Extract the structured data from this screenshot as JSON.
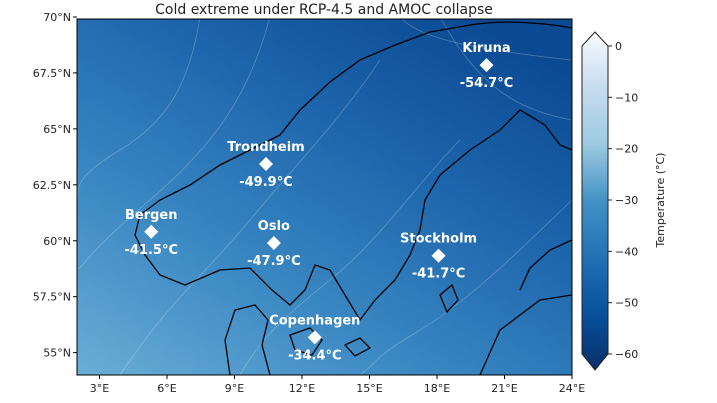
{
  "title": "Cold extreme under RCP-4.5 and AMOC collapse",
  "map": {
    "extent": {
      "lon": [
        2,
        24
      ],
      "lat": [
        54,
        70
      ]
    },
    "lat_ticks": [
      {
        "v": 70,
        "label": "70°N"
      },
      {
        "v": 67.5,
        "label": "67.5°N"
      },
      {
        "v": 65,
        "label": "65°N"
      },
      {
        "v": 62.5,
        "label": "62.5°N"
      },
      {
        "v": 60,
        "label": "60°N"
      },
      {
        "v": 57.5,
        "label": "57.5°N"
      },
      {
        "v": 55,
        "label": "55°N"
      }
    ],
    "lon_ticks": [
      {
        "v": 3,
        "label": "3°E"
      },
      {
        "v": 6,
        "label": "6°E"
      },
      {
        "v": 9,
        "label": "9°E"
      },
      {
        "v": 12,
        "label": "12°E"
      },
      {
        "v": 15,
        "label": "15°E"
      },
      {
        "v": 18,
        "label": "18°E"
      },
      {
        "v": 21,
        "label": "21°E"
      },
      {
        "v": 24,
        "label": "24°E"
      }
    ],
    "cities": [
      {
        "name": "Kiruna",
        "lon": 20.2,
        "lat": 67.85,
        "value": "-54.7°C"
      },
      {
        "name": "Trondheim",
        "lon": 10.4,
        "lat": 63.43,
        "value": "-49.9°C"
      },
      {
        "name": "Bergen",
        "lon": 5.3,
        "lat": 60.4,
        "value": "-41.5°C"
      },
      {
        "name": "Oslo",
        "lon": 10.75,
        "lat": 59.9,
        "value": "-47.9°C"
      },
      {
        "name": "Stockholm",
        "lon": 18.07,
        "lat": 59.33,
        "value": "-41.7°C"
      },
      {
        "name": "Copenhagen",
        "lon": 12.57,
        "lat": 55.68,
        "value": "-34.4°C"
      }
    ]
  },
  "colorbar": {
    "label": "Temperature (°C)",
    "range": [
      -60,
      0
    ],
    "colormap": "Blues_r",
    "extend": "both",
    "ticks": [
      "0",
      "−10",
      "−20",
      "−30",
      "−40",
      "−50",
      "−60"
    ],
    "tick_values": [
      0,
      -10,
      -20,
      -30,
      -40,
      -50,
      -60
    ]
  }
}
